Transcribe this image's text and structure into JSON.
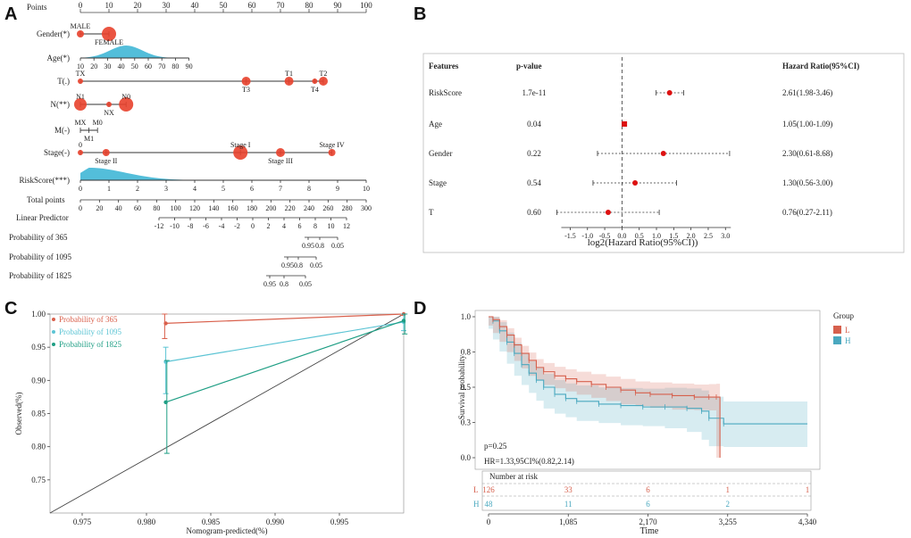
{
  "panel_labels": [
    "A",
    "B",
    "C",
    "D"
  ],
  "colors": {
    "red": "#e8412c",
    "blue": "#35b3d4",
    "darkred": "#c0392b",
    "teal": "#1f9e89",
    "cal365": "#d9604c",
    "cal1095": "#5cc4d4",
    "cal1825": "#1e9e84",
    "kmL": "#d6604d",
    "kmH": "#4aa8bf"
  },
  "chart_data": [
    {
      "panel": "A",
      "type": "nomogram",
      "points_label": "Points",
      "points_ticks": [
        "0",
        "10",
        "20",
        "30",
        "40",
        "50",
        "60",
        "70",
        "80",
        "90",
        "100"
      ],
      "variables": [
        {
          "label": "Gender(*)",
          "markers": [
            {
              "name": "MALE",
              "points": 0,
              "size": 4
            },
            {
              "name": "FEMALE",
              "points": 10,
              "size": 8
            }
          ]
        },
        {
          "label": "Age(*)",
          "axis_ticks": [
            "10",
            "20",
            "30",
            "40",
            "50",
            "60",
            "70",
            "80",
            "90"
          ],
          "axis_range_points": [
            0,
            38
          ],
          "density_peak_points": 16
        },
        {
          "label": "T(.)",
          "markers": [
            {
              "name": "TX",
              "points": 0,
              "size": 3
            },
            {
              "name": "T3",
              "points": 58,
              "size": 5
            },
            {
              "name": "T1",
              "points": 73,
              "size": 5
            },
            {
              "name": "T4",
              "points": 82,
              "size": 3
            },
            {
              "name": "T2",
              "points": 85,
              "size": 5
            }
          ]
        },
        {
          "label": "N(**)",
          "markers": [
            {
              "name": "N1",
              "points": 0,
              "size": 7
            },
            {
              "name": "NX",
              "points": 10,
              "size": 3
            },
            {
              "name": "N0",
              "points": 16,
              "size": 8
            }
          ]
        },
        {
          "label": "M(-)",
          "markers": [
            {
              "name": "MX",
              "points": 0,
              "size": 0
            },
            {
              "name": "M1",
              "points": 3,
              "size": 0
            },
            {
              "name": "M0",
              "points": 6,
              "size": 0
            }
          ]
        },
        {
          "label": "Stage(-)",
          "markers": [
            {
              "name": "0",
              "points": 0,
              "size": 3
            },
            {
              "name": "Stage II",
              "points": 9,
              "size": 4
            },
            {
              "name": "Stage I",
              "points": 56,
              "size": 8
            },
            {
              "name": "Stage III",
              "points": 70,
              "size": 5
            },
            {
              "name": "Stage IV",
              "points": 88,
              "size": 4
            }
          ]
        },
        {
          "label": "RiskScore(***)",
          "axis_ticks": [
            "0",
            "1",
            "2",
            "3",
            "4",
            "5",
            "6",
            "7",
            "8",
            "9",
            "10"
          ],
          "density_peak_points": 3
        }
      ],
      "total_points_label": "Total points",
      "total_points_ticks": [
        "0",
        "20",
        "40",
        "60",
        "80",
        "100",
        "120",
        "140",
        "160",
        "180",
        "200",
        "220",
        "240",
        "260",
        "280",
        "300"
      ],
      "linear_predictor_label": "Linear Predictor",
      "linear_predictor_ticks": [
        "-12",
        "-10",
        "-8",
        "-6",
        "-4",
        "-2",
        "0",
        "2",
        "4",
        "6",
        "8",
        "10",
        "12"
      ],
      "probabilities": [
        {
          "label": "Probability of 365",
          "ticks": [
            "0.95",
            "0.8",
            "0.05"
          ]
        },
        {
          "label": "Probability of 1095",
          "ticks": [
            "0.95",
            "0.8",
            "0.05"
          ]
        },
        {
          "label": "Probability of 1825",
          "ticks": [
            "0.95",
            "0.8",
            "0.05"
          ]
        }
      ]
    },
    {
      "panel": "B",
      "type": "forest",
      "headers": {
        "features": "Features",
        "pvalue": "p-value",
        "hr": "Hazard Ratio(95%CI)"
      },
      "rows": [
        {
          "feature": "RiskScore",
          "p": "1.7e-11",
          "hr_text": "2.61(1.98-3.46)",
          "est": 1.38,
          "lo": 0.99,
          "hi": 1.79
        },
        {
          "feature": "Age",
          "p": "0.04",
          "hr_text": "1.05(1.00-1.09)",
          "est": 0.07,
          "lo": 0.0,
          "hi": 0.12
        },
        {
          "feature": "Gender",
          "p": "0.22",
          "hr_text": "2.30(0.61-8.68)",
          "est": 1.2,
          "lo": -0.71,
          "hi": 3.12
        },
        {
          "feature": "Stage",
          "p": "0.54",
          "hr_text": "1.30(0.56-3.00)",
          "est": 0.38,
          "lo": -0.84,
          "hi": 1.58
        },
        {
          "feature": "T",
          "p": "0.60",
          "hr_text": "0.76(0.27-2.11)",
          "est": -0.4,
          "lo": -1.89,
          "hi": 1.08
        }
      ],
      "xticks": [
        -1.5,
        -1.0,
        -0.5,
        0.0,
        0.5,
        1.0,
        1.5,
        2.0,
        2.5,
        3.0
      ],
      "xlim": [
        -1.9,
        3.2
      ],
      "xlabel": "log2(Hazard Ratio(95%CI))"
    },
    {
      "panel": "C",
      "type": "line",
      "title": "",
      "xlabel": "Nomogram-predicted(%)",
      "ylabel": "Observed(%)",
      "xlim": [
        0.9725,
        1.0
      ],
      "ylim": [
        0.7,
        1.0
      ],
      "xticks": [
        "0.975",
        "0.980",
        "0.985",
        "0.990",
        "0.995"
      ],
      "yticks": [
        "0.75",
        "0.80",
        "0.85",
        "0.90",
        "0.95",
        "1.00"
      ],
      "series": [
        {
          "name": "Probability of 365",
          "x": [
            0.9815,
            1.0
          ],
          "y": [
            0.986,
            1.0
          ],
          "lo": [
            0.963,
            0.998
          ],
          "hi": [
            1.0,
            1.0
          ]
        },
        {
          "name": "Probability of 1095",
          "x": [
            0.9815,
            1.0
          ],
          "y": [
            0.928,
            0.988
          ],
          "lo": [
            0.88,
            0.975
          ],
          "hi": [
            0.95,
            1.0
          ]
        },
        {
          "name": "Probability of 1825",
          "x": [
            0.9815,
            1.0
          ],
          "y": [
            0.867,
            0.99
          ],
          "lo": [
            0.79,
            0.97
          ],
          "hi": [
            0.93,
            1.0
          ]
        }
      ],
      "diagonal": true
    },
    {
      "panel": "D",
      "type": "km",
      "ylabel": "Survival probability",
      "xlabel": "Time",
      "xlim": [
        0,
        4340
      ],
      "ylim": [
        0.0,
        1.0
      ],
      "xticks": [
        "0",
        "1,085",
        "2,170",
        "3,255",
        "4,340"
      ],
      "yticks": [
        "0.0",
        "0.3",
        "0.5",
        "0.8",
        "1.0"
      ],
      "legend_title": "Group",
      "groups": [
        "L",
        "H"
      ],
      "pvalue_text": "p=0.25",
      "hr_text": "HR=1.33,95CI%(0.82,2.14)",
      "risk_table_title": "Number at risk",
      "risk_table": {
        "L": [
          "126",
          "33",
          "6",
          "1",
          "1"
        ],
        "H": [
          "48",
          "11",
          "6",
          "2",
          ""
        ]
      },
      "curve_L": {
        "t": [
          0,
          60,
          150,
          250,
          350,
          450,
          550,
          650,
          750,
          900,
          1050,
          1200,
          1400,
          1600,
          1800,
          2000,
          2200,
          2500,
          2800,
          3000,
          3100,
          3150
        ],
        "s": [
          1.0,
          0.98,
          0.93,
          0.87,
          0.8,
          0.74,
          0.69,
          0.64,
          0.61,
          0.58,
          0.56,
          0.54,
          0.52,
          0.5,
          0.48,
          0.46,
          0.45,
          0.44,
          0.43,
          0.43,
          0.43,
          0.0
        ]
      },
      "curve_H": {
        "t": [
          0,
          60,
          150,
          250,
          350,
          450,
          550,
          650,
          750,
          900,
          1050,
          1200,
          1500,
          1800,
          2100,
          2400,
          2700,
          2900,
          3000,
          3200,
          4340
        ],
        "s": [
          1.0,
          0.97,
          0.9,
          0.82,
          0.74,
          0.66,
          0.6,
          0.55,
          0.5,
          0.45,
          0.42,
          0.4,
          0.38,
          0.37,
          0.36,
          0.36,
          0.35,
          0.33,
          0.28,
          0.24,
          0.24
        ]
      }
    }
  ]
}
